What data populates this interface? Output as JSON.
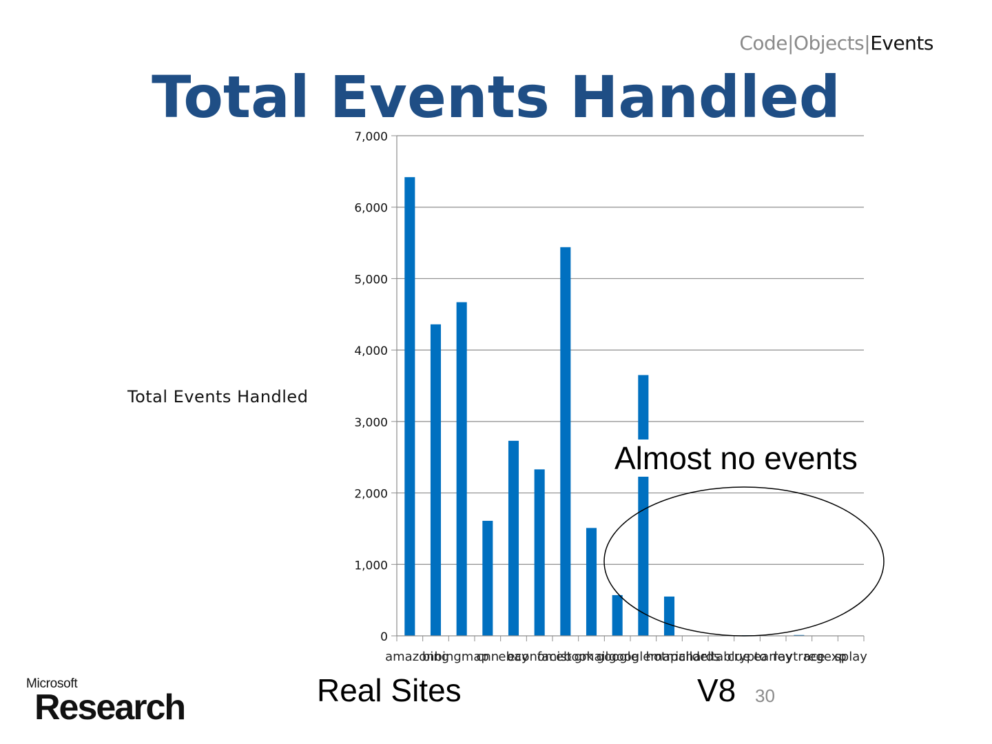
{
  "header": {
    "breadcrumb": [
      {
        "label": "Code",
        "active": false
      },
      {
        "label": "|",
        "active": false
      },
      {
        "label": "Objects",
        "active": false
      },
      {
        "label": "|",
        "active": false
      },
      {
        "label": "Events",
        "active": true
      }
    ]
  },
  "slide": {
    "title": "Total Events Handled",
    "callout": "Almost no events",
    "group_real": "Real Sites",
    "group_v8": "V8",
    "page_number": "30"
  },
  "logo": {
    "top": "Microsoft",
    "main": "Research"
  },
  "colors": {
    "bar": "#0070c0",
    "title": "#1f4e85",
    "grid": "#8c8c8c"
  },
  "chart_data": {
    "type": "bar",
    "title": "",
    "ylabel": "Total Events Handled",
    "xlabel": "",
    "ylim": [
      0,
      7000
    ],
    "yticks": [
      0,
      1000,
      2000,
      3000,
      4000,
      5000,
      6000,
      7000
    ],
    "ytick_labels": [
      "0",
      "1,000",
      "2,000",
      "3,000",
      "4,000",
      "5,000",
      "6,000",
      "7,000"
    ],
    "grid": true,
    "categories": [
      "amazon",
      "bing",
      "bingmap",
      "cnn",
      "ebay",
      "economist",
      "facebook",
      "gmail",
      "google",
      "googlemap",
      "hotmail",
      "richards",
      "deltablue",
      "crypto",
      "earley",
      "raytrace",
      "regexp",
      "splay"
    ],
    "values": [
      6420,
      4360,
      4670,
      1610,
      2730,
      2330,
      5440,
      1510,
      570,
      3650,
      550,
      3,
      2,
      8,
      4,
      12,
      3,
      2
    ]
  }
}
